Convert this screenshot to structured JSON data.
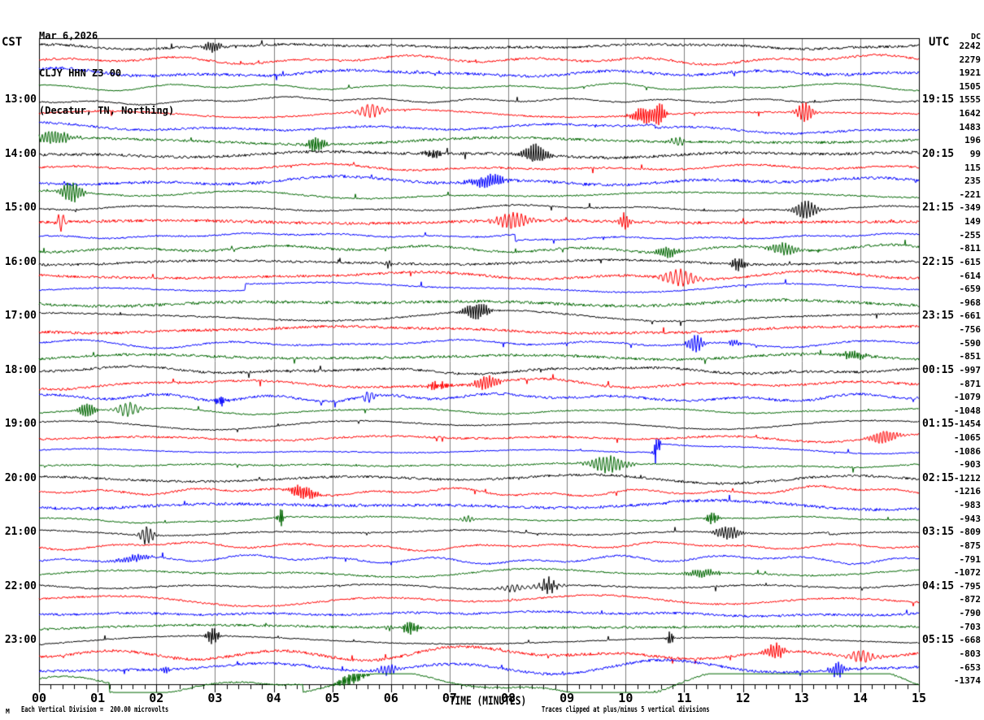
{
  "header": {
    "date": "Mar 6,2026",
    "station": "CLJY HHN Z3 00",
    "location": "(Decatur, TN, Northing)"
  },
  "left_axis": {
    "label": "CST",
    "hours": [
      {
        "label": "13:00",
        "row": 4
      },
      {
        "label": "14:00",
        "row": 8
      },
      {
        "label": "15:00",
        "row": 12
      },
      {
        "label": "16:00",
        "row": 16
      },
      {
        "label": "17:00",
        "row": 20
      },
      {
        "label": "18:00",
        "row": 24
      },
      {
        "label": "19:00",
        "row": 28
      },
      {
        "label": "20:00",
        "row": 32
      },
      {
        "label": "21:00",
        "row": 36
      },
      {
        "label": "22:00",
        "row": 40
      },
      {
        "label": "23:00",
        "row": 44
      }
    ]
  },
  "right_axis": {
    "label": "UTC",
    "dc_label": "DC",
    "hours": [
      {
        "label": "19:15",
        "row": 4
      },
      {
        "label": "20:15",
        "row": 8
      },
      {
        "label": "21:15",
        "row": 12
      },
      {
        "label": "22:15",
        "row": 16
      },
      {
        "label": "23:15",
        "row": 20
      },
      {
        "label": "00:15",
        "row": 24
      },
      {
        "label": "01:15",
        "row": 28
      },
      {
        "label": "02:15",
        "row": 32
      },
      {
        "label": "03:15",
        "row": 36
      },
      {
        "label": "04:15",
        "row": 40
      },
      {
        "label": "05:15",
        "row": 44
      }
    ],
    "dc_values": [
      "2242",
      "2279",
      "1921",
      "1505",
      "1555",
      "1642",
      "1483",
      "196",
      "99",
      "115",
      "235",
      "-221",
      "-349",
      "149",
      "-255",
      "-811",
      "-615",
      "-614",
      "-659",
      "-968",
      "-661",
      "-756",
      "-590",
      "-851",
      "-997",
      "-871",
      "-1079",
      "-1048",
      "-1454",
      "-1065",
      "-1086",
      "-903",
      "-1212",
      "-1216",
      "-983",
      "-943",
      "-809",
      "-875",
      "-791",
      "-1072",
      "-795",
      "-872",
      "-790",
      "-703",
      "-668",
      "-803",
      "-653",
      "-1374"
    ]
  },
  "x_axis": {
    "title": "TIME (MINUTES)",
    "tick_labels": [
      "00",
      "01",
      "02",
      "03",
      "04",
      "05",
      "06",
      "07",
      "08",
      "09",
      "10",
      "11",
      "12",
      "13",
      "14",
      "15"
    ]
  },
  "footer": {
    "left": "Each Vertical Division =  200.00 microvolts",
    "right": "Traces clipped at plus/minus 5 vertical divisions",
    "watermark": "M"
  },
  "colors": {
    "trace_black": "#000000",
    "trace_red": "#ff0000",
    "trace_blue": "#0000ff",
    "trace_green": "#006600",
    "grid": "#808080",
    "frame": "#000000"
  },
  "chart_data": {
    "type": "line",
    "subtype": "helicorder-seismogram",
    "title": "CLJY HHN Z3 00 (Decatur, TN, Northing) Mar 6,2026",
    "xlabel": "TIME (MINUTES)",
    "x_range_minutes": [
      0,
      15
    ],
    "x_major_ticks": [
      0,
      1,
      2,
      3,
      4,
      5,
      6,
      7,
      8,
      9,
      10,
      11,
      12,
      13,
      14,
      15
    ],
    "minor_ticks_per_minute": 5,
    "grid": "vertical-only",
    "num_rows": 48,
    "minutes_per_row": 15,
    "row_color_cycle": [
      "black",
      "red",
      "blue",
      "green"
    ],
    "left_time_zone": "CST",
    "right_time_zone": "UTC",
    "left_hour_labels": [
      "13:00",
      "14:00",
      "15:00",
      "16:00",
      "17:00",
      "18:00",
      "19:00",
      "20:00",
      "21:00",
      "22:00",
      "23:00"
    ],
    "right_hour_labels": [
      "19:15",
      "20:15",
      "21:15",
      "22:15",
      "23:15",
      "00:15",
      "01:15",
      "02:15",
      "03:15",
      "04:15",
      "05:15"
    ],
    "labeled_rows": [
      4,
      8,
      12,
      16,
      20,
      24,
      28,
      32,
      36,
      40,
      44
    ],
    "dc_offsets": [
      2242,
      2279,
      1921,
      1505,
      1555,
      1642,
      1483,
      196,
      99,
      115,
      235,
      -221,
      -349,
      149,
      -255,
      -811,
      -615,
      -614,
      -659,
      -968,
      -661,
      -756,
      -590,
      -851,
      -997,
      -871,
      -1079,
      -1048,
      -1454,
      -1065,
      -1086,
      -903,
      -1212,
      -1216,
      -983,
      -943,
      -809,
      -875,
      -791,
      -1072,
      -795,
      -872,
      -790,
      -703,
      -668,
      -803,
      -653,
      -1374
    ],
    "vertical_division_microvolts": 200.0,
    "clip_divisions": 5
  }
}
